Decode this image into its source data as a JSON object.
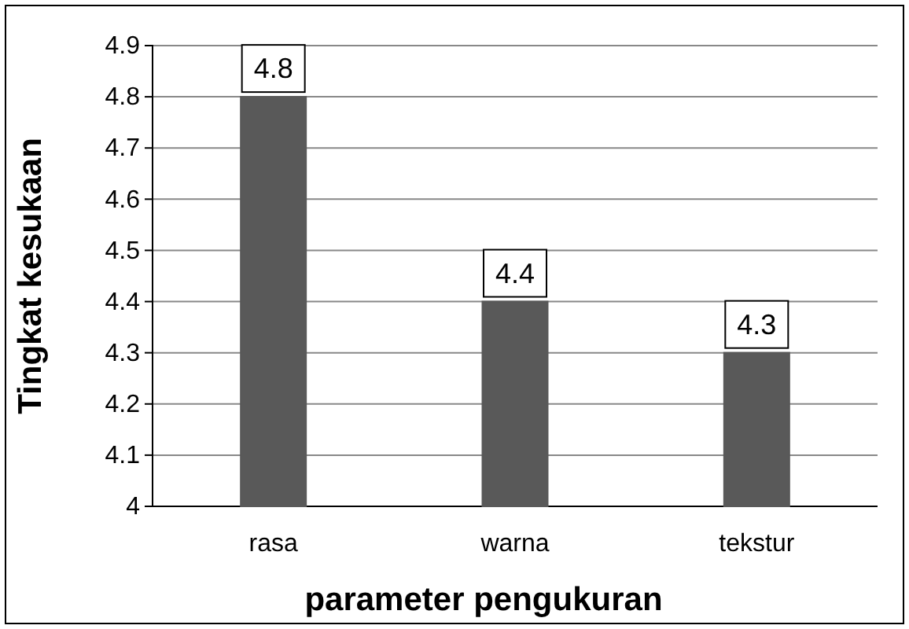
{
  "chart_data": {
    "type": "bar",
    "xlabel": "parameter pengukuran",
    "ylabel": "Tingkat kesukaan",
    "categories": [
      "rasa",
      "warna",
      "tekstur"
    ],
    "values": [
      4.8,
      4.4,
      4.3
    ],
    "color": "#595959",
    "ylim": [
      4,
      4.9
    ],
    "yticks": [
      4,
      4.1,
      4.2,
      4.3,
      4.4,
      4.5,
      4.6,
      4.7,
      4.8,
      4.9
    ],
    "grid": "y",
    "data_labels": true
  }
}
